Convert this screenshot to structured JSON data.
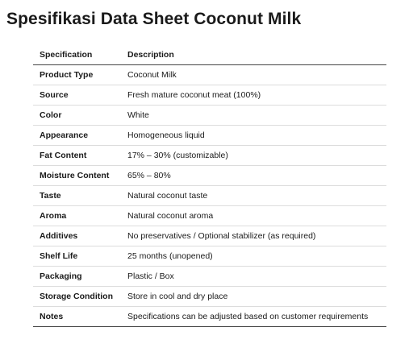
{
  "title": "Spesifikasi Data Sheet Coconut Milk",
  "table": {
    "headers": [
      "Specification",
      "Description"
    ],
    "rows": [
      [
        "Product Type",
        "Coconut Milk"
      ],
      [
        "Source",
        "Fresh mature coconut meat (100%)"
      ],
      [
        "Color",
        "White"
      ],
      [
        "Appearance",
        "Homogeneous liquid"
      ],
      [
        "Fat Content",
        "17% – 30% (customizable)"
      ],
      [
        "Moisture Content",
        "65% – 80%"
      ],
      [
        "Taste",
        "Natural coconut taste"
      ],
      [
        "Aroma",
        "Natural coconut aroma"
      ],
      [
        "Additives",
        "No preservatives / Optional stabilizer (as required)"
      ],
      [
        "Shelf Life",
        "25 months (unopened)"
      ],
      [
        "Packaging",
        "Plastic / Box"
      ],
      [
        "Storage Condition",
        "Store in cool and dry place"
      ],
      [
        "Notes",
        "Specifications can be adjusted based on customer requirements"
      ]
    ]
  }
}
